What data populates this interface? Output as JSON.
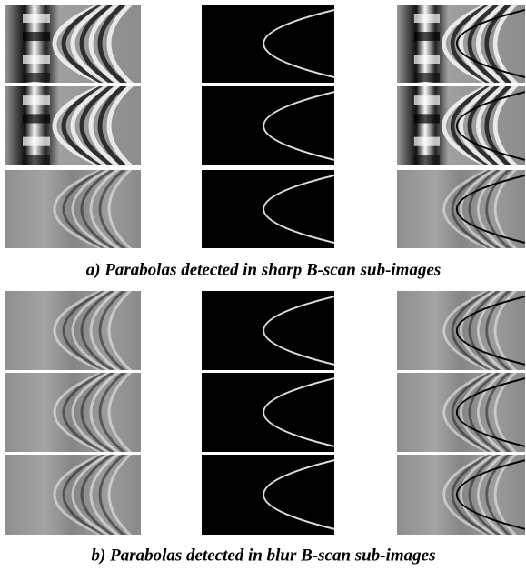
{
  "figure": {
    "captions": [
      "a) Parabolas detected in sharp B-scan sub-images",
      "b) Parabolas detected in blur B-scan sub-images"
    ]
  }
}
